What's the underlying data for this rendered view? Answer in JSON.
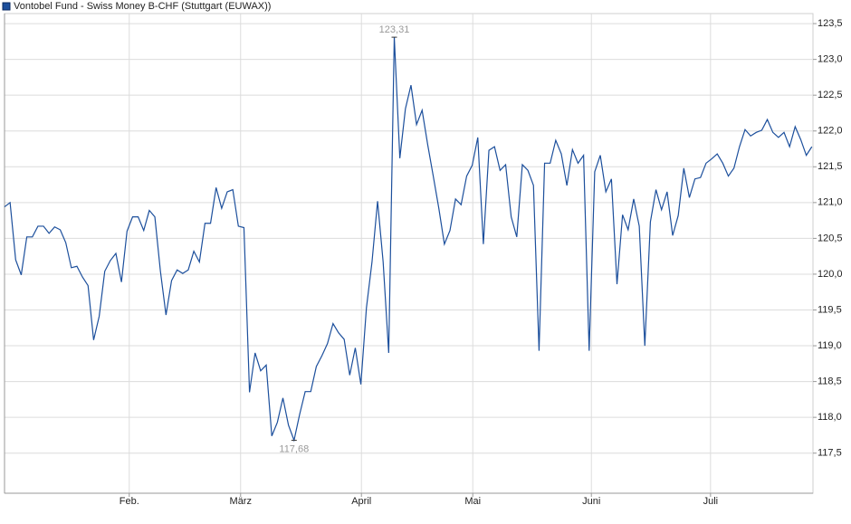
{
  "chart_data": {
    "type": "line",
    "series": [
      {
        "name": "Vontobel Fund - Swiss Money B-CHF (Stuttgart (EUWAX))",
        "color": "#1c4f9c",
        "values": [
          120.94,
          121.0,
          120.2,
          119.99,
          120.52,
          120.52,
          120.67,
          120.67,
          120.57,
          120.66,
          120.62,
          120.44,
          120.09,
          120.11,
          119.96,
          119.84,
          119.08,
          119.41,
          120.04,
          120.19,
          120.29,
          119.89,
          120.6,
          120.8,
          120.8,
          120.61,
          120.89,
          120.8,
          120.04,
          119.43,
          119.91,
          120.06,
          120.01,
          120.06,
          120.32,
          120.17,
          120.71,
          120.71,
          121.21,
          120.92,
          121.15,
          121.18,
          120.67,
          120.65,
          118.35,
          118.9,
          118.65,
          118.73,
          117.74,
          117.93,
          118.27,
          117.89,
          117.68,
          118.04,
          118.36,
          118.36,
          118.71,
          118.86,
          119.03,
          119.31,
          119.18,
          119.09,
          118.59,
          118.97,
          118.46,
          119.53,
          120.17,
          121.02,
          120.17,
          118.9,
          123.31,
          121.62,
          122.31,
          122.64,
          122.09,
          122.29,
          121.81,
          121.37,
          120.92,
          120.42,
          120.61,
          121.05,
          120.97,
          121.37,
          121.52,
          121.91,
          120.42,
          121.73,
          121.78,
          121.45,
          121.53,
          120.8,
          120.52,
          121.53,
          121.45,
          121.24,
          118.93,
          121.55,
          121.55,
          121.87,
          121.68,
          121.24,
          121.74,
          121.55,
          121.66,
          118.93,
          121.43,
          121.66,
          121.15,
          121.33,
          119.86,
          120.83,
          120.62,
          121.05,
          120.67,
          119.0,
          120.73,
          121.18,
          120.9,
          121.15,
          120.54,
          120.82,
          121.48,
          121.07,
          121.33,
          121.35,
          121.55,
          121.61,
          121.68,
          121.55,
          121.37,
          121.48,
          121.78,
          122.02,
          121.93,
          121.98,
          122.01,
          122.16,
          121.98,
          121.91,
          121.98,
          121.78,
          122.06,
          121.88,
          121.66,
          121.78
        ]
      }
    ],
    "x": [
      0,
      1,
      2,
      3,
      4,
      5,
      6,
      7,
      8,
      9,
      10,
      11,
      12,
      13,
      14,
      15,
      16,
      17,
      18,
      19,
      20,
      21,
      22,
      23,
      24,
      25,
      26,
      27,
      28,
      29,
      30,
      31,
      32,
      33,
      34,
      35,
      36,
      37,
      38,
      39,
      40,
      41,
      42,
      43,
      44,
      45,
      46,
      47,
      48,
      49,
      50,
      51,
      52,
      53,
      54,
      55,
      56,
      57,
      58,
      59,
      60,
      61,
      62,
      63,
      64,
      65,
      66,
      67,
      68,
      69,
      70,
      71,
      72,
      73,
      74,
      75,
      76,
      77,
      78,
      79,
      80,
      81,
      82,
      83,
      84,
      85,
      86,
      87,
      88,
      89,
      90,
      91,
      92,
      93,
      94,
      95,
      96,
      97,
      98,
      99,
      100,
      101,
      102,
      103,
      104,
      105,
      106,
      107,
      108,
      109,
      110,
      111,
      112,
      113,
      114,
      115,
      116,
      117,
      118,
      119,
      120,
      121,
      122,
      123,
      124,
      125,
      126,
      127,
      128,
      129,
      130,
      131,
      132,
      133,
      134,
      135,
      136,
      137,
      138,
      139,
      140,
      141,
      142,
      143,
      144,
      145
    ],
    "xlim": [
      0,
      145.2
    ],
    "xticks": [
      {
        "value": 22.4,
        "label": "Feb."
      },
      {
        "value": 42.4,
        "label": "März"
      },
      {
        "value": 64.1,
        "label": "April"
      },
      {
        "value": 84.1,
        "label": "Mai"
      },
      {
        "value": 105.4,
        "label": "Juni"
      },
      {
        "value": 126.8,
        "label": "Juli"
      }
    ],
    "ylim": [
      116.94,
      123.64
    ],
    "yticks": [
      {
        "value": 117.5,
        "label": "117,5"
      },
      {
        "value": 118,
        "label": "118,0"
      },
      {
        "value": 118.5,
        "label": "118,5"
      },
      {
        "value": 119,
        "label": "119,0"
      },
      {
        "value": 119.5,
        "label": "119,5"
      },
      {
        "value": 120,
        "label": "120,0"
      },
      {
        "value": 120.5,
        "label": "120,5"
      },
      {
        "value": 121,
        "label": "121,0"
      },
      {
        "value": 121.5,
        "label": "121,5"
      },
      {
        "value": 122,
        "label": "122,0"
      },
      {
        "value": 122.5,
        "label": "122,5"
      },
      {
        "value": 123,
        "label": "123,0"
      },
      {
        "value": 123.5,
        "label": "123,5"
      }
    ],
    "grid": true,
    "annotations": [
      {
        "x": 70,
        "value": 123.31,
        "label": "123,31",
        "position": "above"
      },
      {
        "x": 52,
        "value": 117.68,
        "label": "117,68",
        "position": "below"
      }
    ]
  }
}
